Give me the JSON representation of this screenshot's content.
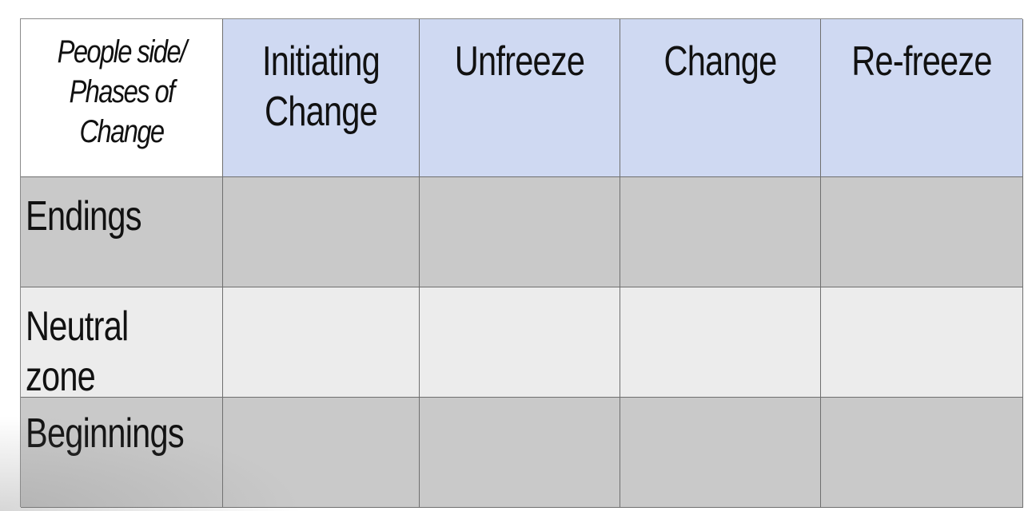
{
  "table": {
    "corner_label": [
      "People side/",
      "Phases of",
      "Change"
    ],
    "columns": [
      [
        "Initiating",
        "Change"
      ],
      [
        "Unfreeze"
      ],
      [
        "Change"
      ],
      [
        "Re-freeze"
      ]
    ],
    "rows": [
      {
        "label": [
          "Endings"
        ],
        "shade": "#c9c9c9"
      },
      {
        "label": [
          "Neutral",
          "zone"
        ],
        "shade": "#ececec"
      },
      {
        "label": [
          "Beginnings"
        ],
        "shade": "#c9c9c9"
      }
    ],
    "header_color": "#cfd9f2"
  }
}
